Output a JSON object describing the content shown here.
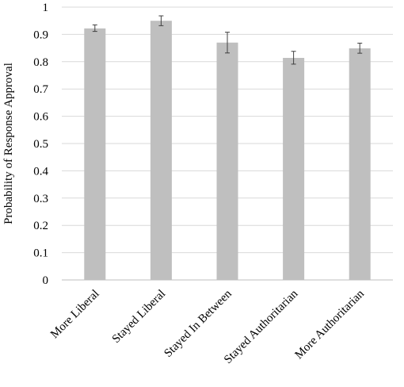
{
  "chart_data": {
    "type": "bar",
    "title": "",
    "xlabel": "",
    "ylabel": "Probability of Response Approval",
    "categories": [
      "More Liberal",
      "Stayed Liberal",
      "Stayed In Between",
      "Stayed Authoritarian",
      "More Authoritarian"
    ],
    "values": [
      0.922,
      0.95,
      0.87,
      0.814,
      0.849
    ],
    "error_low": [
      0.911,
      0.932,
      0.832,
      0.791,
      0.831
    ],
    "error_high": [
      0.935,
      0.968,
      0.908,
      0.838,
      0.868
    ],
    "ylim": [
      0,
      1
    ],
    "yticks": [
      0,
      0.1,
      0.2,
      0.3,
      0.4,
      0.5,
      0.6,
      0.7,
      0.8,
      0.9,
      1
    ],
    "ytick_labels": [
      "0",
      "0.1",
      "0.2",
      "0.3",
      "0.4",
      "0.5",
      "0.6",
      "0.7",
      "0.8",
      "0.9",
      "1"
    ],
    "grid": true,
    "legend": "none",
    "bar_color": "#bfbfbf",
    "grid_color": "#d9d9d9",
    "error_bar_color": "#404040"
  }
}
